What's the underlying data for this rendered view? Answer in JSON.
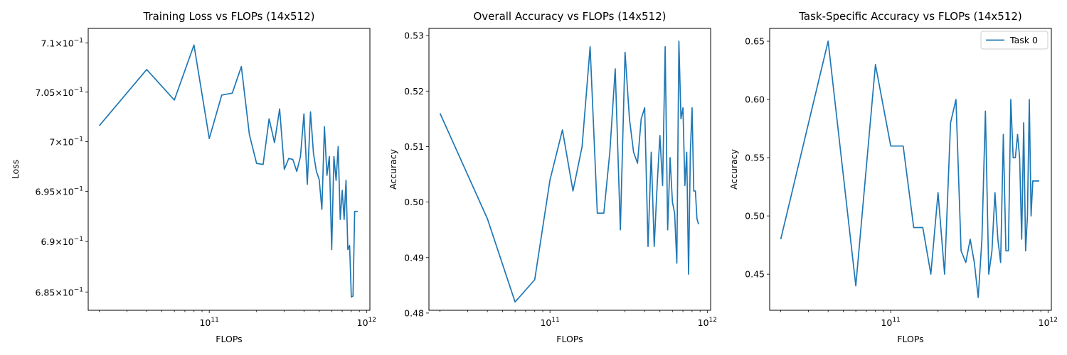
{
  "chart_data": [
    {
      "type": "line",
      "title": "Training Loss vs FLOPs (14x512)",
      "xlabel": "FLOPs",
      "ylabel": "Loss",
      "xscale": "log",
      "yscale": "log",
      "xlim": [
        17000000000.0,
        1050000000000.0
      ],
      "ylim": [
        0.6832,
        0.7115
      ],
      "grid": false,
      "x_ticks": [
        {
          "value": 100000000000.0,
          "base": "10",
          "exp": "11"
        },
        {
          "value": 1000000000000.0,
          "base": "10",
          "exp": "12"
        }
      ],
      "y_ticks": [
        {
          "value": 0.685,
          "mantissa": "6.85",
          "base": "10",
          "exp": "−1"
        },
        {
          "value": 0.69,
          "mantissa": "6.9",
          "base": "10",
          "exp": "−1"
        },
        {
          "value": 0.695,
          "mantissa": "6.95",
          "base": "10",
          "exp": "−1"
        },
        {
          "value": 0.7,
          "mantissa": "7",
          "base": "10",
          "exp": "−1"
        },
        {
          "value": 0.705,
          "mantissa": "7.05",
          "base": "10",
          "exp": "−1"
        },
        {
          "value": 0.71,
          "mantissa": "7.1",
          "base": "10",
          "exp": "−1"
        }
      ],
      "series": [
        {
          "x": [
            20000000000.0,
            40000000000.0,
            60000000000.0,
            80000000000.0,
            100000000000.0,
            120000000000.0,
            140000000000.0,
            160000000000.0,
            180000000000.0,
            200000000000.0,
            220000000000.0,
            240000000000.0,
            260000000000.0,
            280000000000.0,
            300000000000.0,
            320000000000.0,
            340000000000.0,
            360000000000.0,
            380000000000.0,
            400000000000.0,
            420000000000.0,
            440000000000.0,
            460000000000.0,
            480000000000.0,
            500000000000.0,
            520000000000.0,
            540000000000.0,
            560000000000.0,
            580000000000.0,
            600000000000.0,
            620000000000.0,
            640000000000.0,
            660000000000.0,
            680000000000.0,
            700000000000.0,
            720000000000.0,
            740000000000.0,
            760000000000.0,
            780000000000.0,
            800000000000.0,
            820000000000.0,
            840000000000.0,
            860000000000.0,
            880000000000.0
          ],
          "y": [
            0.7016,
            0.7073,
            0.7042,
            0.7098,
            0.7003,
            0.7047,
            0.7049,
            0.7076,
            0.7007,
            0.6978,
            0.6977,
            0.7023,
            0.6999,
            0.7033,
            0.6972,
            0.6983,
            0.6982,
            0.697,
            0.6985,
            0.7028,
            0.6957,
            0.703,
            0.6988,
            0.697,
            0.6962,
            0.6932,
            0.7015,
            0.6966,
            0.6985,
            0.6892,
            0.6985,
            0.6961,
            0.6995,
            0.6922,
            0.6951,
            0.6922,
            0.6961,
            0.6892,
            0.6896,
            0.6845,
            0.6846,
            0.693,
            0.693,
            0.693
          ]
        }
      ]
    },
    {
      "type": "line",
      "title": "Overall Accuracy vs FLOPs (14x512)",
      "xlabel": "FLOPs",
      "ylabel": "Accuracy",
      "xscale": "log",
      "xlim": [
        17000000000.0,
        1050000000000.0
      ],
      "ylim": [
        0.4805,
        0.5313
      ],
      "grid": false,
      "x_ticks": [
        {
          "value": 100000000000.0,
          "base": "10",
          "exp": "11"
        },
        {
          "value": 1000000000000.0,
          "base": "10",
          "exp": "12"
        }
      ],
      "y_ticks": [
        {
          "value": 0.48,
          "label": "0.48"
        },
        {
          "value": 0.49,
          "label": "0.49"
        },
        {
          "value": 0.5,
          "label": "0.50"
        },
        {
          "value": 0.51,
          "label": "0.51"
        },
        {
          "value": 0.52,
          "label": "0.52"
        },
        {
          "value": 0.53,
          "label": "0.53"
        }
      ],
      "series": [
        {
          "x": [
            20000000000.0,
            40000000000.0,
            60000000000.0,
            80000000000.0,
            100000000000.0,
            120000000000.0,
            140000000000.0,
            160000000000.0,
            180000000000.0,
            200000000000.0,
            220000000000.0,
            240000000000.0,
            260000000000.0,
            280000000000.0,
            300000000000.0,
            320000000000.0,
            340000000000.0,
            360000000000.0,
            380000000000.0,
            400000000000.0,
            420000000000.0,
            440000000000.0,
            460000000000.0,
            480000000000.0,
            500000000000.0,
            520000000000.0,
            540000000000.0,
            560000000000.0,
            580000000000.0,
            600000000000.0,
            620000000000.0,
            640000000000.0,
            660000000000.0,
            680000000000.0,
            700000000000.0,
            720000000000.0,
            740000000000.0,
            760000000000.0,
            780000000000.0,
            800000000000.0,
            820000000000.0,
            840000000000.0,
            860000000000.0,
            880000000000.0
          ],
          "y": [
            0.516,
            0.497,
            0.482,
            0.486,
            0.504,
            0.513,
            0.502,
            0.51,
            0.528,
            0.498,
            0.498,
            0.509,
            0.524,
            0.495,
            0.527,
            0.515,
            0.509,
            0.507,
            0.515,
            0.517,
            0.492,
            0.509,
            0.492,
            0.503,
            0.512,
            0.503,
            0.528,
            0.495,
            0.508,
            0.5,
            0.498,
            0.489,
            0.529,
            0.515,
            0.517,
            0.503,
            0.509,
            0.487,
            0.509,
            0.517,
            0.502,
            0.502,
            0.497,
            0.496
          ]
        }
      ]
    },
    {
      "type": "line",
      "title": "Task-Specific Accuracy vs FLOPs (14x512)",
      "xlabel": "FLOPs",
      "ylabel": "Accuracy",
      "xscale": "log",
      "xlim": [
        17000000000.0,
        1050000000000.0
      ],
      "ylim": [
        0.419,
        0.661
      ],
      "grid": false,
      "legend": {
        "position": "upper right",
        "entries": [
          "Task 0"
        ]
      },
      "x_ticks": [
        {
          "value": 100000000000.0,
          "base": "10",
          "exp": "11"
        },
        {
          "value": 1000000000000.0,
          "base": "10",
          "exp": "12"
        }
      ],
      "y_ticks": [
        {
          "value": 0.45,
          "label": "0.45"
        },
        {
          "value": 0.5,
          "label": "0.50"
        },
        {
          "value": 0.55,
          "label": "0.55"
        },
        {
          "value": 0.6,
          "label": "0.60"
        },
        {
          "value": 0.65,
          "label": "0.65"
        }
      ],
      "series": [
        {
          "name": "Task 0",
          "x": [
            20000000000.0,
            40000000000.0,
            60000000000.0,
            80000000000.0,
            100000000000.0,
            120000000000.0,
            140000000000.0,
            160000000000.0,
            180000000000.0,
            200000000000.0,
            220000000000.0,
            240000000000.0,
            260000000000.0,
            280000000000.0,
            300000000000.0,
            320000000000.0,
            340000000000.0,
            360000000000.0,
            380000000000.0,
            400000000000.0,
            420000000000.0,
            440000000000.0,
            460000000000.0,
            480000000000.0,
            500000000000.0,
            520000000000.0,
            540000000000.0,
            560000000000.0,
            580000000000.0,
            600000000000.0,
            620000000000.0,
            640000000000.0,
            660000000000.0,
            680000000000.0,
            700000000000.0,
            720000000000.0,
            740000000000.0,
            760000000000.0,
            780000000000.0,
            800000000000.0,
            820000000000.0,
            840000000000.0,
            860000000000.0,
            880000000000.0
          ],
          "y": [
            0.48,
            0.65,
            0.44,
            0.63,
            0.56,
            0.56,
            0.49,
            0.49,
            0.45,
            0.52,
            0.45,
            0.58,
            0.6,
            0.47,
            0.46,
            0.48,
            0.46,
            0.43,
            0.48,
            0.59,
            0.45,
            0.47,
            0.52,
            0.48,
            0.46,
            0.57,
            0.47,
            0.47,
            0.6,
            0.55,
            0.55,
            0.57,
            0.55,
            0.48,
            0.58,
            0.47,
            0.5,
            0.6,
            0.5,
            0.53,
            0.53,
            0.53,
            0.53,
            0.53
          ]
        }
      ]
    }
  ],
  "colors": {
    "series": "#1f77b4",
    "axes": "#000000",
    "background": "#ffffff"
  }
}
